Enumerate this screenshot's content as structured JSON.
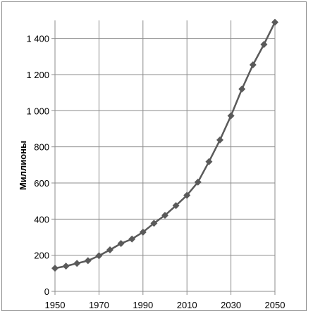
{
  "chart_data": {
    "type": "line",
    "title": "",
    "xlabel": "",
    "ylabel": "Миллионы",
    "xlim": [
      1950,
      2050
    ],
    "ylim": [
      0,
      1500
    ],
    "x_ticks": [
      {
        "value": 1950,
        "label": "1950"
      },
      {
        "value": 1970,
        "label": "1970"
      },
      {
        "value": 1990,
        "label": "1990"
      },
      {
        "value": 2010,
        "label": "2010"
      },
      {
        "value": 2030,
        "label": "2030"
      },
      {
        "value": 2050,
        "label": "2050"
      }
    ],
    "y_ticks": [
      {
        "value": 0,
        "label": "0"
      },
      {
        "value": 200,
        "label": "200"
      },
      {
        "value": 400,
        "label": "400"
      },
      {
        "value": 600,
        "label": "600"
      },
      {
        "value": 800,
        "label": "800"
      },
      {
        "value": 1000,
        "label": "1 000"
      },
      {
        "value": 1200,
        "label": "1 200"
      },
      {
        "value": 1400,
        "label": "1 400"
      }
    ],
    "grid": true,
    "legend": "none",
    "series": [
      {
        "color": "#5a5a5a",
        "marker": "diamond",
        "x": [
          1950,
          1955,
          1960,
          1965,
          1970,
          1975,
          1980,
          1985,
          1990,
          1995,
          2000,
          2005,
          2010,
          2015,
          2020,
          2025,
          2030,
          2035,
          2040,
          2045,
          2050
        ],
        "values": [
          128,
          140,
          155,
          170,
          197,
          230,
          265,
          290,
          328,
          377,
          421,
          475,
          532,
          605,
          718,
          838,
          972,
          1120,
          1254,
          1367,
          1490
        ]
      }
    ]
  }
}
